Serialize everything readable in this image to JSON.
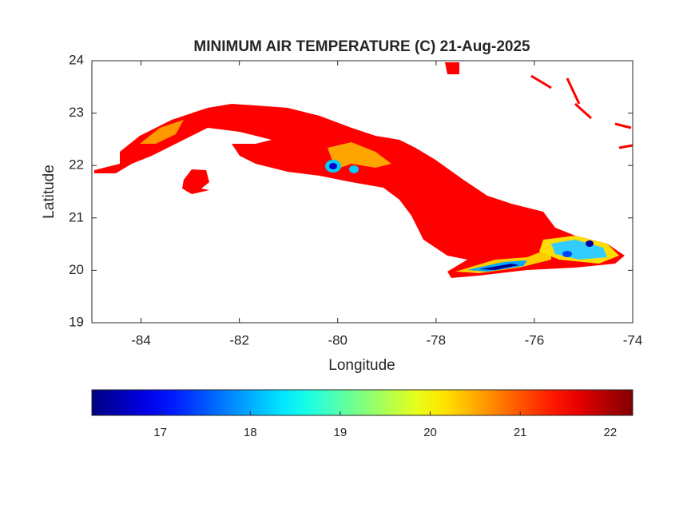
{
  "chart_data": {
    "type": "map",
    "title": "MINIMUM AIR TEMPERATURE (C) 21-Aug-2025",
    "x_label": "Longitude",
    "y_label": "Latitude",
    "xlim": [
      -85,
      -74
    ],
    "xticks": [
      -84,
      -82,
      -80,
      -78,
      -76,
      -74
    ],
    "ylim": [
      19,
      24
    ],
    "yticks": [
      19,
      20,
      21,
      22,
      23,
      24
    ],
    "colorbar": {
      "colormap": "jet",
      "lim": [
        16.24,
        22.25
      ],
      "ticks": [
        17,
        18,
        19,
        20,
        21,
        22
      ]
    }
  }
}
